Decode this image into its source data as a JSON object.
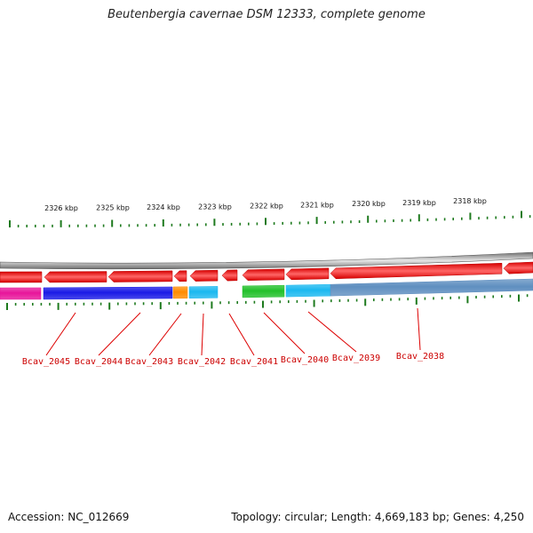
{
  "title": "Beutenbergia cavernae DSM 12333, complete genome",
  "footer": {
    "accession": "Accession: NC_012669",
    "summary": "Topology: circular; Length: 4,669,183 bp; Genes: 4,250"
  },
  "colors": {
    "forward_gene": "#ff0000",
    "backbone": "#8a8a8a",
    "tick": "#1e7a1e",
    "label": "#cc0000",
    "leader": "#dd0000"
  },
  "kbp_labels": [
    "2326 kbp",
    "2325 kbp",
    "2324 kbp",
    "2323 kbp",
    "2322 kbp",
    "2321 kbp",
    "2320 kbp",
    "2319 kbp",
    "2318 kbp"
  ],
  "genes": [
    {
      "name": "Bcav_2045",
      "color": "#e8159a"
    },
    {
      "name": "Bcav_2044",
      "color": "#1a1ae6"
    },
    {
      "name": "Bcav_2043",
      "color": "#ff8c00"
    },
    {
      "name": "Bcav_2042",
      "color": "#1ab8f0"
    },
    {
      "name": "Bcav_2041",
      "color": ""
    },
    {
      "name": "Bcav_2040",
      "color": "#22c02a"
    },
    {
      "name": "Bcav_2039",
      "color": "#1ab8f0"
    },
    {
      "name": "Bcav_2038",
      "color": "#5f8fc0"
    }
  ]
}
